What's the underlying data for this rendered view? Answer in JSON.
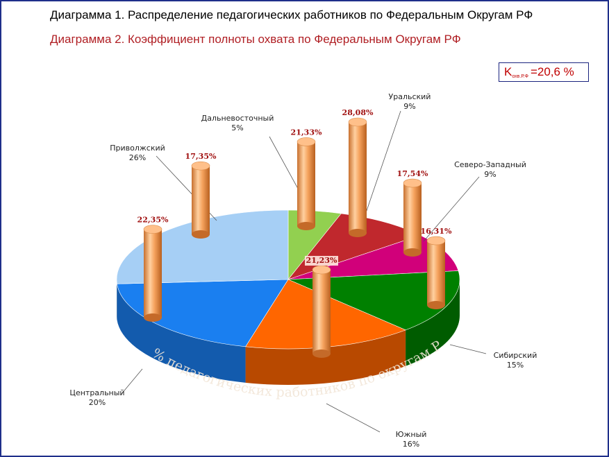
{
  "titles": {
    "line1": "Диаграмма 1.   Распределение педагогических работников по Федеральным Округам РФ",
    "line2": "Диаграмма 2.   Коэффициент полноты охвата по Федеральным Округам РФ"
  },
  "coef_box": {
    "k": "K",
    "sub": "охв.Р.Ф",
    "value": "=20,6 %"
  },
  "chart_data": [
    {
      "type": "pie",
      "title": "Распределение педагогических работников по Федеральным Округам РФ",
      "rim_label": "% педагогических работников по округам РФ",
      "categories": [
        "Дальневосточный",
        "Уральский",
        "Северо-Западный",
        "Сибирский",
        "Южный",
        "Центральный",
        "Приволжский"
      ],
      "values": [
        5,
        9,
        9,
        15,
        16,
        20,
        26
      ],
      "value_labels": [
        "5%",
        "9%",
        "9%",
        "15%",
        "16%",
        "20%",
        "26%"
      ],
      "colors": [
        "#92d050",
        "#c0282d",
        "#d1007a",
        "#008000",
        "#ff6600",
        "#1a7ff0",
        "#a6cff5"
      ]
    },
    {
      "type": "bar",
      "title": "Коэффициент полноты охвата по Федеральным Округам РФ",
      "categories": [
        "Центральный",
        "Приволжский",
        "Дальневосточный",
        "Уральский",
        "Северо-Западный",
        "Сибирский",
        "Южный"
      ],
      "values": [
        22.35,
        17.35,
        21.33,
        28.08,
        17.54,
        16.31,
        21.23
      ],
      "value_labels": [
        "22,35%",
        "17,35%",
        "21,33%",
        "28,08%",
        "17,54%",
        "16,31%",
        "21,23%"
      ],
      "color": "#f5a25d",
      "ylim": [
        0,
        30
      ]
    }
  ]
}
